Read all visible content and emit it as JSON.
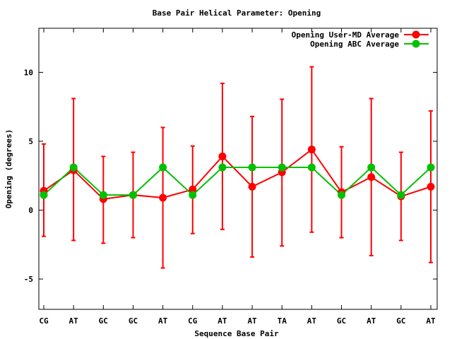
{
  "chart_data": {
    "type": "line",
    "title": "Base Pair Helical Parameter: Opening",
    "xlabel": "Sequence Base Pair",
    "ylabel": "Opening (degrees)",
    "categories": [
      "CG",
      "AT",
      "GC",
      "GC",
      "AT",
      "CG",
      "AT",
      "AT",
      "TA",
      "AT",
      "GC",
      "AT",
      "GC",
      "AT"
    ],
    "ylim": [
      -7.2,
      13.2
    ],
    "yticks": [
      -5,
      0,
      5,
      10
    ],
    "legend_position": "top-right",
    "series": [
      {
        "name": "Opening User-MD Average",
        "color": "#ff0000",
        "values": [
          1.4,
          2.9,
          0.8,
          1.1,
          0.9,
          1.5,
          3.9,
          1.7,
          2.75,
          4.4,
          1.3,
          2.4,
          1.0,
          1.7
        ],
        "error_low": [
          -1.9,
          -2.2,
          -2.4,
          -2.0,
          -4.2,
          -1.7,
          -1.4,
          -3.4,
          -2.6,
          -1.6,
          -2.0,
          -3.3,
          -2.2,
          -3.8
        ],
        "error_high": [
          4.8,
          8.1,
          3.9,
          4.2,
          6.0,
          4.65,
          9.2,
          6.8,
          8.05,
          10.4,
          4.6,
          8.1,
          4.2,
          7.2
        ]
      },
      {
        "name": "Opening ABC Average",
        "color": "#00c000",
        "values": [
          1.1,
          3.1,
          1.1,
          1.1,
          3.1,
          1.1,
          3.1,
          3.1,
          3.1,
          3.1,
          1.1,
          3.1,
          1.1,
          3.1
        ]
      }
    ]
  }
}
